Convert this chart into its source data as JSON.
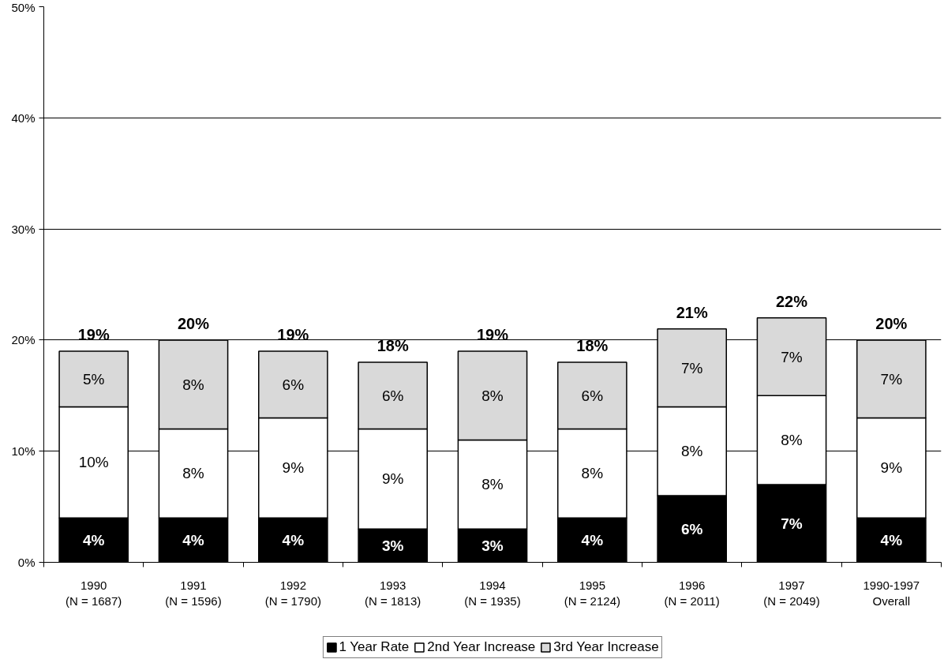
{
  "chart_data": {
    "type": "bar",
    "stacked": true,
    "categories": [
      "1990\n(N = 1687)",
      "1991\n(N = 1596)",
      "1992\n(N = 1790)",
      "1993\n(N = 1813)",
      "1994\n(N = 1935)",
      "1995\n(N = 2124)",
      "1996\n(N = 2011)",
      "1997\n(N = 2049)",
      "1990-1997\nOverall"
    ],
    "series": [
      {
        "name": "1 Year Rate",
        "color": "#000000",
        "values": [
          4,
          4,
          4,
          3,
          3,
          4,
          6,
          7,
          4
        ],
        "value_labels": [
          "4%",
          "4%",
          "4%",
          "3%",
          "3%",
          "4%",
          "6%",
          "7%",
          "4%"
        ]
      },
      {
        "name": "2nd Year Increase",
        "color": "#ffffff",
        "values": [
          10,
          8,
          9,
          9,
          8,
          8,
          8,
          8,
          9
        ],
        "value_labels": [
          "10%",
          "8%",
          "9%",
          "9%",
          "8%",
          "8%",
          "8%",
          "8%",
          "9%"
        ]
      },
      {
        "name": "3rd Year Increase",
        "color": "#d9d9d9",
        "values": [
          5,
          8,
          6,
          6,
          8,
          6,
          7,
          7,
          7
        ],
        "value_labels": [
          "5%",
          "8%",
          "6%",
          "6%",
          "8%",
          "6%",
          "7%",
          "7%",
          "7%"
        ]
      }
    ],
    "totals": [
      "19%",
      "20%",
      "19%",
      "18%",
      "19%",
      "18%",
      "21%",
      "22%",
      "20%"
    ],
    "ylim": [
      0,
      50
    ],
    "yticks": [
      {
        "value": 0,
        "label": "0%"
      },
      {
        "value": 10,
        "label": "10%"
      },
      {
        "value": 20,
        "label": "20%"
      },
      {
        "value": 30,
        "label": "30%"
      },
      {
        "value": 40,
        "label": "40%"
      },
      {
        "value": 50,
        "label": "50%"
      }
    ],
    "grid": "y",
    "legend": "bottom"
  }
}
